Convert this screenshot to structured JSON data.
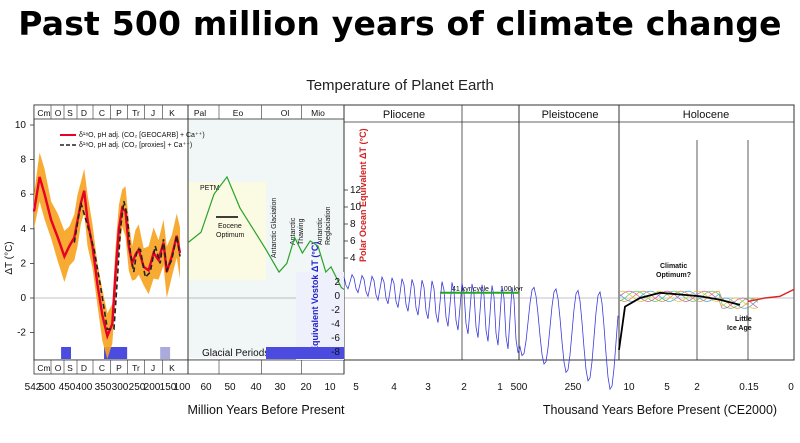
{
  "header": {
    "title": "Past 500 million years of climate change"
  },
  "chart_data": {
    "type": "line",
    "title": "Temperature of Planet Earth",
    "ylabel": "ΔT (°C)",
    "ylim": [
      -4,
      10
    ],
    "y_ticks": [
      "10",
      "8",
      "6",
      "4",
      "2",
      "0",
      "-2"
    ],
    "x_tick_labels": [
      "542",
      "500",
      "450",
      "400",
      "350",
      "300",
      "250",
      "200",
      "150",
      "100",
      "60",
      "50",
      "40",
      "30",
      "20",
      "10",
      "5",
      "4",
      "3",
      "2",
      "1",
      "500",
      "250",
      "10",
      "5",
      "2",
      "0.15",
      "0"
    ],
    "xlabel_left": "Million Years Before Present",
    "xlabel_right": "Thousand Years Before Present (CE2000)",
    "periods": [
      "Cm",
      "O",
      "S",
      "D",
      "C",
      "P",
      "Tr",
      "J",
      "K",
      "Pal",
      "Eo",
      "Ol",
      "Mio"
    ],
    "epochs": [
      "Pliocene",
      "Pleistocene",
      "Holocene"
    ],
    "legend": [
      "δ¹⁸O, pH adj. (CO₂ [GEOCARB] + Ca⁺⁺)",
      "δ¹⁸O, pH adj. (CO₂ [proxies] + Ca⁺⁺)"
    ],
    "right_axis_polar": {
      "label": "Polar Ocean Equivalent ΔT (°C)",
      "ticks": [
        "12",
        "10",
        "8",
        "6",
        "4"
      ]
    },
    "right_axis_vostok": {
      "label": "Equivalent Vostok ΔT (°C)",
      "ticks": [
        "2",
        "0",
        "-2",
        "-4",
        "-6",
        "-8"
      ]
    },
    "annotations": {
      "petm": "PETM",
      "eocene_optimum": [
        "Eocene",
        "Optimum"
      ],
      "antarctic_glaciation": "Antarctic Glaciation",
      "antarctic_thawing": [
        "Antarctic",
        "Thawing"
      ],
      "antarctic_reglaciation": [
        "Antarctic",
        "Reglaciation"
      ],
      "cycle_41": "41 kyr cycle",
      "cycle_100": "100 kyr",
      "climatic_optimum": [
        "Climatic",
        "Optimum?"
      ],
      "little_ice_age": [
        "Little",
        "Ice Age"
      ],
      "glacial_periods": "Glacial Periods"
    },
    "series": [
      {
        "name": "δ¹⁸O, pH adj. (CO₂ [GEOCARB] + Ca⁺⁺)",
        "x": [
          542,
          525,
          510,
          490,
          470,
          450,
          435,
          420,
          410,
          400,
          390,
          380,
          365,
          350,
          335,
          320,
          305,
          295,
          285,
          275,
          265,
          255,
          245,
          235,
          225,
          210,
          195,
          180,
          165,
          150,
          140,
          125,
          110,
          100
        ],
        "y": [
          5,
          7,
          6,
          4.5,
          3.5,
          2.4,
          3,
          3.5,
          4.5,
          5.5,
          6.2,
          4.5,
          3,
          0.8,
          -1,
          -2.2,
          -1.5,
          1.5,
          4,
          5.2,
          5,
          3,
          2,
          2.5,
          2.8,
          1.8,
          1.6,
          2.6,
          2.2,
          3.2,
          1.5,
          2.4,
          3.6,
          2.6
        ],
        "color": "#e8002a"
      },
      {
        "name": "δ¹⁸O, pH adj. (CO₂ [proxies] + Ca⁺⁺)",
        "x": [
          420,
          400,
          380,
          360,
          340,
          320,
          300,
          290,
          280,
          270,
          260,
          250,
          240,
          230,
          220,
          205,
          190,
          175,
          160,
          150,
          140,
          125,
          110,
          100
        ],
        "y": [
          3.2,
          5.5,
          4.2,
          2.8,
          0.6,
          -1.8,
          -1.8,
          1,
          4,
          5.6,
          4.8,
          2.6,
          1.5,
          2.8,
          2.8,
          1.2,
          1.5,
          3,
          2,
          3.4,
          1.6,
          2.2,
          3.6,
          2.4
        ],
        "color": "#222222"
      },
      {
        "name": "",
        "x": [
          65,
          60,
          55,
          50,
          45,
          40,
          35,
          30,
          27,
          24,
          21,
          18,
          15,
          12,
          10,
          8,
          6,
          5
        ],
        "y": [
          3.2,
          3.8,
          6,
          7,
          5.2,
          4,
          2.8,
          1.5,
          2,
          3.5,
          2.6,
          3.3,
          3,
          1.5,
          1.8,
          1.2,
          0.6,
          0.5
        ],
        "color": "#29a329"
      }
    ],
    "glacial_periods_ma": [
      [
        460,
        430
      ],
      [
        330,
        260
      ],
      [
        160,
        130
      ],
      [
        35,
        0
      ]
    ]
  }
}
